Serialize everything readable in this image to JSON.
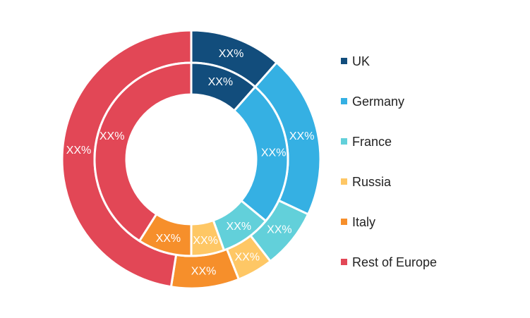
{
  "chart_data": {
    "type": "pie",
    "variant": "nested-donut",
    "legend_position": "right",
    "categories": [
      "UK",
      "Germany",
      "France",
      "Russia",
      "Italy",
      "Rest of Europe"
    ],
    "colors": [
      "#124d7c",
      "#35b0e3",
      "#62d0da",
      "#fec765",
      "#f68f2b",
      "#e24756"
    ],
    "series": [
      {
        "ring": "outer",
        "values": [
          11.5,
          20.5,
          7.5,
          4.5,
          8.5,
          47.5
        ],
        "labels": [
          "XX%",
          "XX%",
          "XX%",
          "XX%",
          "XX%",
          "XX%"
        ]
      },
      {
        "ring": "inner",
        "values": [
          11.5,
          24.5,
          8.5,
          5.5,
          9.0,
          41.0
        ],
        "labels": [
          "XX%",
          "XX%",
          "XX%",
          "XX%",
          "XX%",
          "XX%"
        ]
      }
    ]
  }
}
